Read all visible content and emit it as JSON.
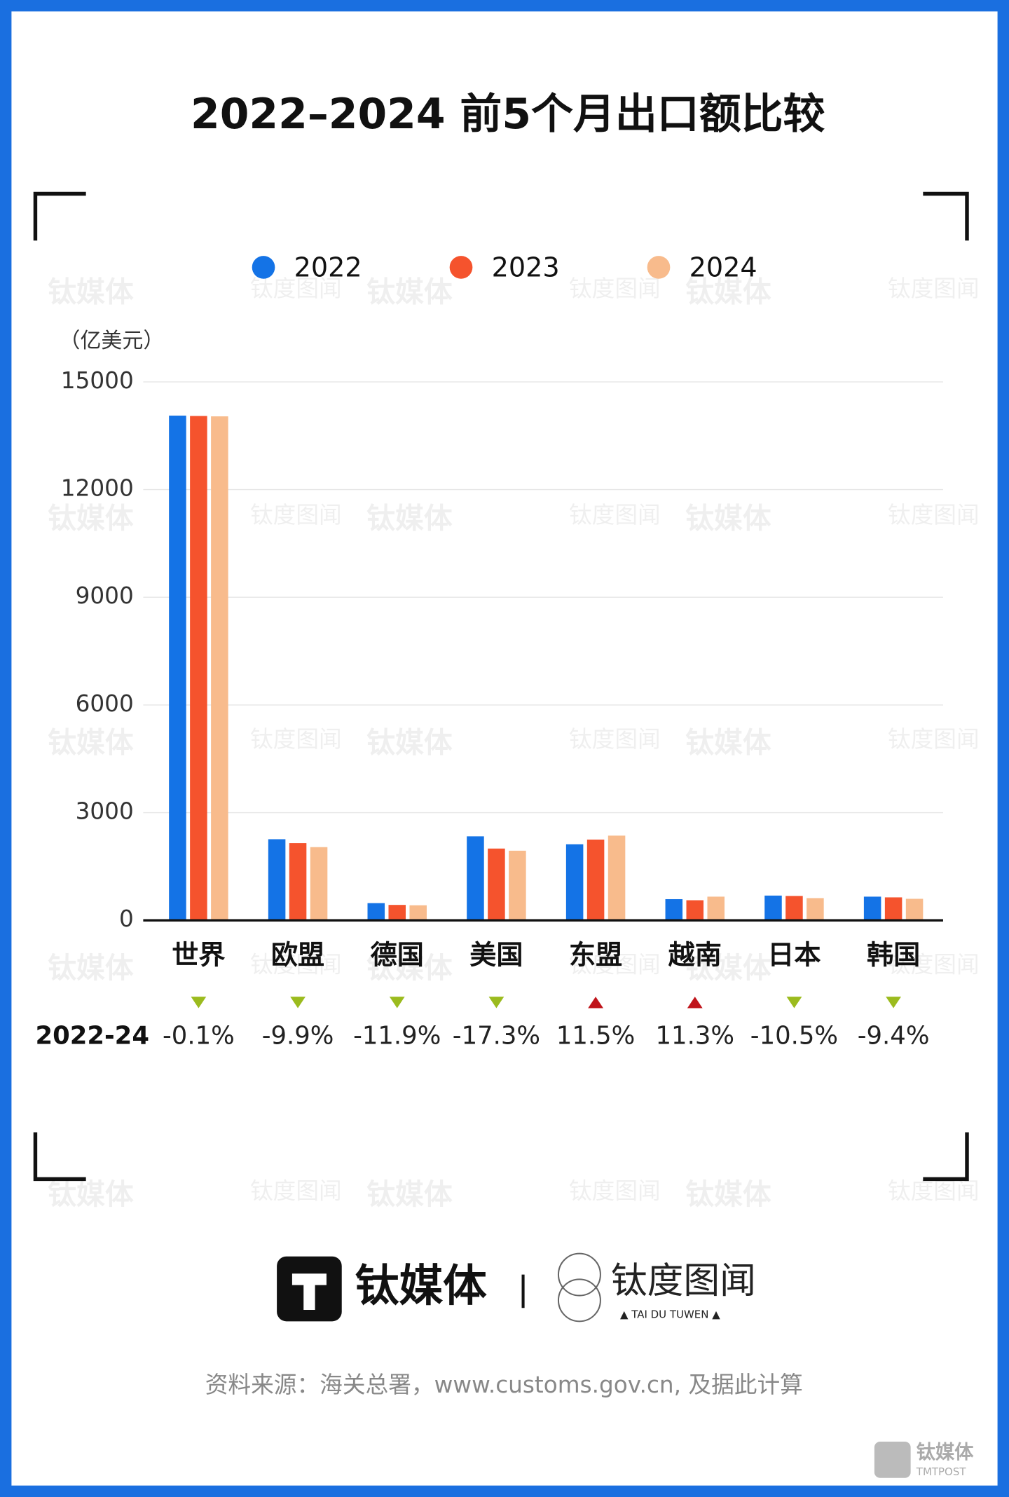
{
  "chart_data": {
    "type": "bar",
    "title": "2022–2024 前5个月出口额比较",
    "y_unit": "（亿美元）",
    "categories": [
      "世界",
      "欧盟",
      "德国",
      "美国",
      "东盟",
      "越南",
      "日本",
      "韩国"
    ],
    "series": [
      {
        "name": "2022",
        "color": "#1473e6",
        "values": [
          14060,
          2260,
          480,
          2340,
          2120,
          590,
          690,
          660
        ]
      },
      {
        "name": "2023",
        "color": "#f5532d",
        "values": [
          14050,
          2150,
          430,
          2000,
          2250,
          560,
          680,
          640
        ]
      },
      {
        "name": "2024",
        "color": "#f8bb8c",
        "values": [
          14040,
          2040,
          420,
          1940,
          2360,
          660,
          620,
          600
        ]
      }
    ],
    "ylim": [
      0,
      15000
    ],
    "yticks": [
      0,
      3000,
      6000,
      9000,
      12000,
      15000
    ],
    "grid": true,
    "change_row_label": "2022-24",
    "change_values": [
      -0.1,
      -9.9,
      -11.9,
      -17.3,
      11.5,
      11.3,
      -10.5,
      -9.4
    ],
    "change_labels": [
      "-0.1%",
      "-9.9%",
      "-11.9%",
      "-17.3%",
      "11.5%",
      "11.3%",
      "-10.5%",
      "-9.4%"
    ],
    "up_color": "#c0141b",
    "down_color": "#9bbb1e"
  },
  "brand": {
    "name": "钛媒体",
    "partner": "钛度图闻",
    "partner_sub": "▲ TAI DU TUWEN ▲",
    "badge_sub": "TMTPOST"
  },
  "source": "资料来源：海关总署，www.customs.gov.cn, 及据此计算"
}
